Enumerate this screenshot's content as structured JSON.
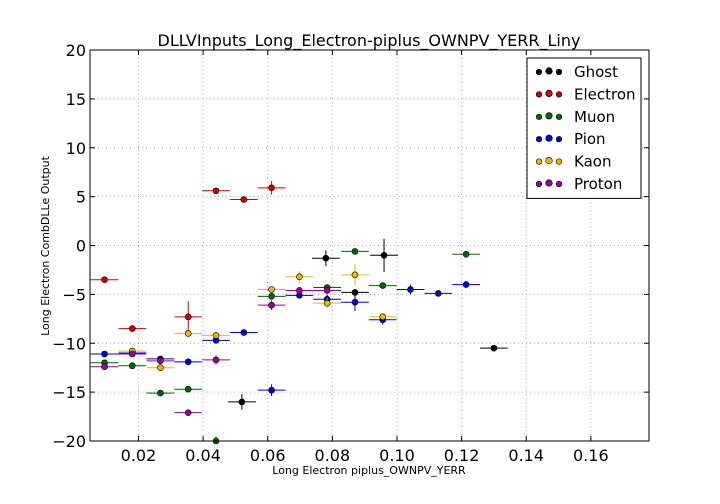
{
  "chart_data": {
    "type": "scatter",
    "title": "DLLVInputs_Long_Electron-piplus_OWNPV_YERR_Liny",
    "xlabel": "Long Electron piplus_OWNPV_YERR",
    "ylabel": "Long Electron CombDLLe Output",
    "xlim": [
      0.005,
      0.178
    ],
    "ylim": [
      -20,
      20
    ],
    "xticks": [
      0.02,
      0.04,
      0.06,
      0.08,
      0.1,
      0.12,
      0.14,
      0.16
    ],
    "xtick_labels": [
      "0.02",
      "0.04",
      "0.06",
      "0.08",
      "0.10",
      "0.12",
      "0.14",
      "0.16"
    ],
    "yticks": [
      -20,
      -15,
      -10,
      -5,
      0,
      5,
      10,
      15,
      20
    ],
    "ytick_labels": [
      "−20",
      "−15",
      "−10",
      "−5",
      "0",
      "5",
      "10",
      "15",
      "20"
    ],
    "grid": true,
    "legend_position": "top-right",
    "series": [
      {
        "name": "Ghost",
        "color": "#000000",
        "points": [
          {
            "x": 0.052,
            "y": -16.0,
            "xerr": 0.0043,
            "yerr": 0.8
          },
          {
            "x": 0.078,
            "y": -1.3,
            "xerr": 0.0043,
            "yerr": 0.8
          },
          {
            "x": 0.087,
            "y": -4.8,
            "xerr": 0.0043,
            "yerr": 0.3
          },
          {
            "x": 0.096,
            "y": -1.0,
            "xerr": 0.0043,
            "yerr": 1.7
          },
          {
            "x": 0.13,
            "y": -10.5,
            "xerr": 0.0043,
            "yerr": 0.1
          }
        ]
      },
      {
        "name": "Electron",
        "color": "#cc0000",
        "points": [
          {
            "x": 0.0095,
            "y": -3.5,
            "xerr": 0.0043,
            "yerr": 0.1
          },
          {
            "x": 0.0181,
            "y": -8.5,
            "xerr": 0.0043,
            "yerr": 0.1
          },
          {
            "x": 0.0354,
            "y": -7.3,
            "xerr": 0.0043,
            "yerr": 1.6
          },
          {
            "x": 0.044,
            "y": 5.6,
            "xerr": 0.0043,
            "yerr": 0.2
          },
          {
            "x": 0.0526,
            "y": 4.7,
            "xerr": 0.0043,
            "yerr": 0.1
          },
          {
            "x": 0.0612,
            "y": 5.9,
            "xerr": 0.0043,
            "yerr": 0.7
          }
        ]
      },
      {
        "name": "Muon",
        "color": "#006600",
        "points": [
          {
            "x": 0.0095,
            "y": -12.0,
            "xerr": 0.0043,
            "yerr": 0.1
          },
          {
            "x": 0.0181,
            "y": -12.3,
            "xerr": 0.0043,
            "yerr": 0.1
          },
          {
            "x": 0.0268,
            "y": -15.1,
            "xerr": 0.0043,
            "yerr": 0.1
          },
          {
            "x": 0.0354,
            "y": -14.7,
            "xerr": 0.0043,
            "yerr": 0.1
          },
          {
            "x": 0.044,
            "y": -20.0,
            "xerr": 0.0043,
            "yerr": 0.5
          },
          {
            "x": 0.0612,
            "y": -5.2,
            "xerr": 0.0043,
            "yerr": 0.3
          },
          {
            "x": 0.0784,
            "y": -4.3,
            "xerr": 0.0043,
            "yerr": 0.3
          },
          {
            "x": 0.087,
            "y": -0.6,
            "xerr": 0.0043,
            "yerr": 0.1
          },
          {
            "x": 0.0956,
            "y": -4.1,
            "xerr": 0.0043,
            "yerr": 0.1
          },
          {
            "x": 0.1214,
            "y": -0.9,
            "xerr": 0.0043,
            "yerr": 0.1
          }
        ]
      },
      {
        "name": "Pion",
        "color": "#0000cc",
        "points": [
          {
            "x": 0.0095,
            "y": -11.1,
            "xerr": 0.0043,
            "yerr": 0.1
          },
          {
            "x": 0.0181,
            "y": -11.0,
            "xerr": 0.0043,
            "yerr": 0.1
          },
          {
            "x": 0.0268,
            "y": -11.6,
            "xerr": 0.0043,
            "yerr": 0.1
          },
          {
            "x": 0.0354,
            "y": -11.9,
            "xerr": 0.0043,
            "yerr": 0.1
          },
          {
            "x": 0.044,
            "y": -9.7,
            "xerr": 0.0043,
            "yerr": 0.1
          },
          {
            "x": 0.0526,
            "y": -8.9,
            "xerr": 0.0043,
            "yerr": 0.1
          },
          {
            "x": 0.0612,
            "y": -14.8,
            "xerr": 0.0043,
            "yerr": 0.6
          },
          {
            "x": 0.0698,
            "y": -5.1,
            "xerr": 0.0043,
            "yerr": 0.2
          },
          {
            "x": 0.0784,
            "y": -5.5,
            "xerr": 0.0043,
            "yerr": 0.5
          },
          {
            "x": 0.087,
            "y": -5.8,
            "xerr": 0.0043,
            "yerr": 0.9
          },
          {
            "x": 0.0956,
            "y": -7.6,
            "xerr": 0.0043,
            "yerr": 0.5
          },
          {
            "x": 0.1042,
            "y": -4.5,
            "xerr": 0.0043,
            "yerr": 0.5
          },
          {
            "x": 0.1128,
            "y": -4.9,
            "xerr": 0.0043,
            "yerr": 0.1
          },
          {
            "x": 0.1214,
            "y": -4.0,
            "xerr": 0.0043,
            "yerr": 0.2
          }
        ]
      },
      {
        "name": "Kaon",
        "color": "#e6b800",
        "points": [
          {
            "x": 0.0181,
            "y": -10.8,
            "xerr": 0.0043,
            "yerr": 0.1
          },
          {
            "x": 0.0268,
            "y": -12.5,
            "xerr": 0.0043,
            "yerr": 0.2
          },
          {
            "x": 0.0354,
            "y": -9.0,
            "xerr": 0.0043,
            "yerr": 0.1
          },
          {
            "x": 0.044,
            "y": -9.2,
            "xerr": 0.0043,
            "yerr": 0.3
          },
          {
            "x": 0.0612,
            "y": -4.5,
            "xerr": 0.0043,
            "yerr": 0.1
          },
          {
            "x": 0.0698,
            "y": -3.2,
            "xerr": 0.0043,
            "yerr": 0.6
          },
          {
            "x": 0.0784,
            "y": -5.9,
            "xerr": 0.0043,
            "yerr": 0.5
          },
          {
            "x": 0.087,
            "y": -3.0,
            "xerr": 0.0043,
            "yerr": 1.1
          },
          {
            "x": 0.0956,
            "y": -7.3,
            "xerr": 0.0043,
            "yerr": 0.3
          }
        ]
      },
      {
        "name": "Proton",
        "color": "#990099",
        "points": [
          {
            "x": 0.0095,
            "y": -12.4,
            "xerr": 0.0043,
            "yerr": 0.1
          },
          {
            "x": 0.0181,
            "y": -11.1,
            "xerr": 0.0043,
            "yerr": 0.1
          },
          {
            "x": 0.0268,
            "y": -11.8,
            "xerr": 0.0043,
            "yerr": 0.1
          },
          {
            "x": 0.0354,
            "y": -17.1,
            "xerr": 0.0043,
            "yerr": 0.1
          },
          {
            "x": 0.044,
            "y": -11.7,
            "xerr": 0.0043,
            "yerr": 0.5
          },
          {
            "x": 0.0612,
            "y": -6.1,
            "xerr": 0.0043,
            "yerr": 0.5
          },
          {
            "x": 0.0698,
            "y": -4.6,
            "xerr": 0.0043,
            "yerr": 0.2
          },
          {
            "x": 0.0784,
            "y": -4.6,
            "xerr": 0.0043,
            "yerr": 0.2
          }
        ]
      }
    ]
  }
}
